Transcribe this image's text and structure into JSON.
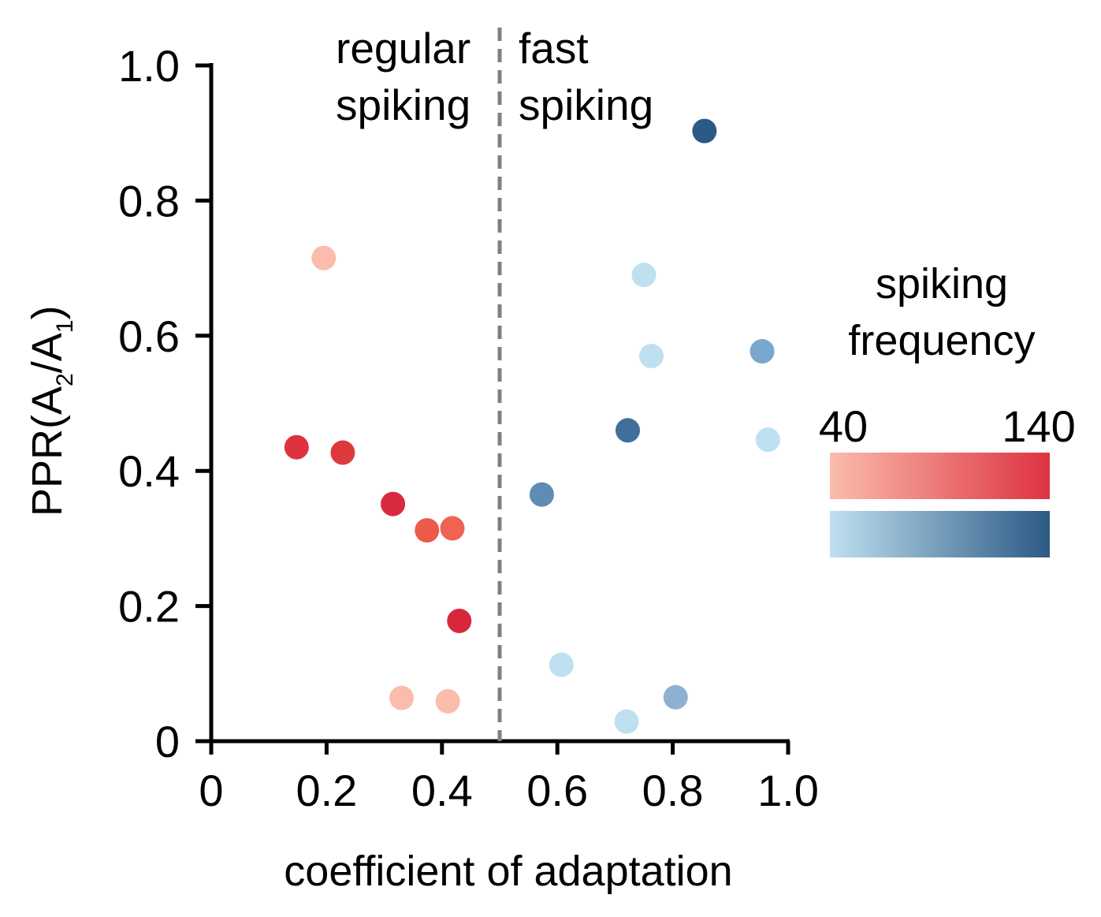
{
  "chart_data": {
    "type": "scatter",
    "xlabel": "coefficient of adaptation",
    "ylabel": "PPR(A2/A1)",
    "ylabel_parts": {
      "prefix": "PPR(A",
      "sub1": "2",
      "mid": "/A",
      "sub2": "1",
      "suffix": ")"
    },
    "xlim": [
      0,
      1.0
    ],
    "ylim": [
      0,
      1.0
    ],
    "xticks": [
      "0",
      "0.2",
      "0.4",
      "0.6",
      "0.8",
      "1.0"
    ],
    "yticks": [
      "0",
      "0.2",
      "0.4",
      "0.6",
      "0.8",
      "1.0"
    ],
    "grid": false,
    "threshold_x": 0.5,
    "regions": [
      {
        "lines": [
          "regular",
          "spiking"
        ]
      },
      {
        "lines": [
          "fast",
          "spiking"
        ]
      }
    ],
    "colorbar": {
      "title_lines": [
        "spiking",
        "frequency"
      ],
      "min_label": "40",
      "max_label": "140",
      "min": 40,
      "max": 140,
      "red_scale": [
        "#fbbcac",
        "#dd3341"
      ],
      "blue_scale": [
        "#bfe0f0",
        "#2b5a85"
      ]
    },
    "series": [
      {
        "color_scale": "red",
        "points": [
          {
            "x": 0.195,
            "y": 0.715,
            "color": "#fbbcac"
          },
          {
            "x": 0.148,
            "y": 0.435,
            "color": "#dd3341"
          },
          {
            "x": 0.228,
            "y": 0.427,
            "color": "#de3a3e"
          },
          {
            "x": 0.315,
            "y": 0.351,
            "color": "#d92b3e"
          },
          {
            "x": 0.374,
            "y": 0.312,
            "color": "#ec5a4a"
          },
          {
            "x": 0.418,
            "y": 0.315,
            "color": "#ee6352"
          },
          {
            "x": 0.43,
            "y": 0.178,
            "color": "#d6283a"
          },
          {
            "x": 0.33,
            "y": 0.064,
            "color": "#fbbcac"
          },
          {
            "x": 0.41,
            "y": 0.059,
            "color": "#fbbcac"
          }
        ]
      },
      {
        "color_scale": "blue",
        "points": [
          {
            "x": 0.855,
            "y": 0.903,
            "color": "#2b5a85"
          },
          {
            "x": 0.75,
            "y": 0.69,
            "color": "#bfe0f0"
          },
          {
            "x": 0.763,
            "y": 0.57,
            "color": "#bfe0f0"
          },
          {
            "x": 0.955,
            "y": 0.577,
            "color": "#7aa7ce"
          },
          {
            "x": 0.722,
            "y": 0.46,
            "color": "#416f9c"
          },
          {
            "x": 0.965,
            "y": 0.446,
            "color": "#bfe0f0"
          },
          {
            "x": 0.573,
            "y": 0.365,
            "color": "#5f8bb5"
          },
          {
            "x": 0.607,
            "y": 0.113,
            "color": "#bfe0f0"
          },
          {
            "x": 0.805,
            "y": 0.065,
            "color": "#8eb1d1"
          },
          {
            "x": 0.72,
            "y": 0.029,
            "color": "#bfe0f0"
          }
        ]
      }
    ]
  }
}
